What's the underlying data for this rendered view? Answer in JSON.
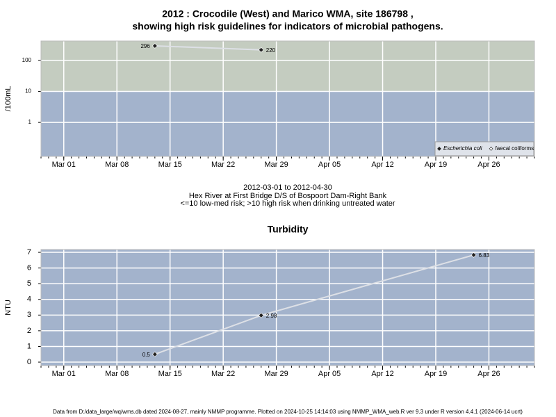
{
  "title": [
    "2012 : Crocodile (West) and Marico WMA, site 186798 ,",
    "showing high risk guidelines for indicators of microbial pathogens."
  ],
  "caption": [
    "2012-03-01 to 2012-04-30",
    "Hex River at First Bridge D/S of Bospoort Dam-Right Bank",
    "<=10 low-med risk; >10 high risk when drinking untreated water"
  ],
  "footer": "Data from D:/data_large/wq/wms.db dated 2024-08-27, mainly NMMP programme. Plotted on 2024-10-25 14:14:03 using NMMP_WMA_web.R ver 9.3 under R version 4.4.1 (2024-06-14 ucrt)",
  "chart_data": [
    {
      "type": "line",
      "ylabel": "/100mL",
      "log_y": true,
      "grid": true,
      "background": "#a3b3cc",
      "bands": [
        {
          "from": 10,
          "color": "#c4ccc0"
        }
      ],
      "legend": "bottom-right",
      "xlim": [
        "Feb 27",
        "May 02"
      ],
      "xticks": [
        "Mar 01",
        "Mar 08",
        "Mar 15",
        "Mar 22",
        "Mar 29",
        "Apr 05",
        "Apr 12",
        "Apr 19",
        "Apr 26"
      ],
      "ylim": [
        0.08,
        425
      ],
      "yticks": [
        1,
        10,
        100
      ],
      "x": [
        "Mar 13",
        "Mar 27"
      ],
      "series": [
        {
          "name": "Escherichia coli",
          "color": "#222222",
          "values": [
            296,
            220
          ]
        },
        {
          "name": "faecal coliforms",
          "color": "#ffffff",
          "values": [
            null,
            null
          ]
        }
      ]
    },
    {
      "type": "line",
      "title": "Turbidity",
      "ylabel": "NTU",
      "grid": true,
      "background": "#a3b3cc",
      "xlim": [
        "Feb 27",
        "May 02"
      ],
      "xticks": [
        "Mar 01",
        "Mar 08",
        "Mar 15",
        "Mar 22",
        "Mar 29",
        "Apr 05",
        "Apr 12",
        "Apr 19",
        "Apr 26"
      ],
      "ylim": [
        -0.22,
        7.18
      ],
      "yticks": [
        0,
        1,
        2,
        3,
        4,
        5,
        6,
        7
      ],
      "x": [
        "Mar 13",
        "Mar 27",
        "Apr 24"
      ],
      "series": [
        {
          "color": "#222222",
          "values": [
            0.5,
            2.98,
            6.83
          ]
        }
      ]
    }
  ]
}
